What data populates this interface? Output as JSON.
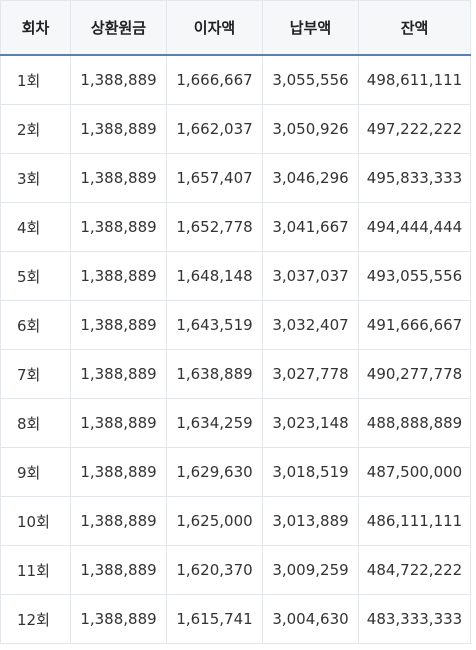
{
  "table": {
    "headers": [
      "회차",
      "상환원금",
      "이자액",
      "납부액",
      "잔액"
    ],
    "rows": [
      [
        "1회",
        "1,388,889",
        "1,666,667",
        "3,055,556",
        "498,611,111"
      ],
      [
        "2회",
        "1,388,889",
        "1,662,037",
        "3,050,926",
        "497,222,222"
      ],
      [
        "3회",
        "1,388,889",
        "1,657,407",
        "3,046,296",
        "495,833,333"
      ],
      [
        "4회",
        "1,388,889",
        "1,652,778",
        "3,041,667",
        "494,444,444"
      ],
      [
        "5회",
        "1,388,889",
        "1,648,148",
        "3,037,037",
        "493,055,556"
      ],
      [
        "6회",
        "1,388,889",
        "1,643,519",
        "3,032,407",
        "491,666,667"
      ],
      [
        "7회",
        "1,388,889",
        "1,638,889",
        "3,027,778",
        "490,277,778"
      ],
      [
        "8회",
        "1,388,889",
        "1,634,259",
        "3,023,148",
        "488,888,889"
      ],
      [
        "9회",
        "1,388,889",
        "1,629,630",
        "3,018,519",
        "487,500,000"
      ],
      [
        "10회",
        "1,388,889",
        "1,625,000",
        "3,013,889",
        "486,111,111"
      ],
      [
        "11회",
        "1,388,889",
        "1,620,370",
        "3,009,259",
        "484,722,222"
      ],
      [
        "12회",
        "1,388,889",
        "1,615,741",
        "3,004,630",
        "483,333,333"
      ]
    ]
  },
  "colors": {
    "header_background": "#f5f7f9",
    "header_rule": "#5a7fb3",
    "cell_border": "#e3e6ea"
  }
}
